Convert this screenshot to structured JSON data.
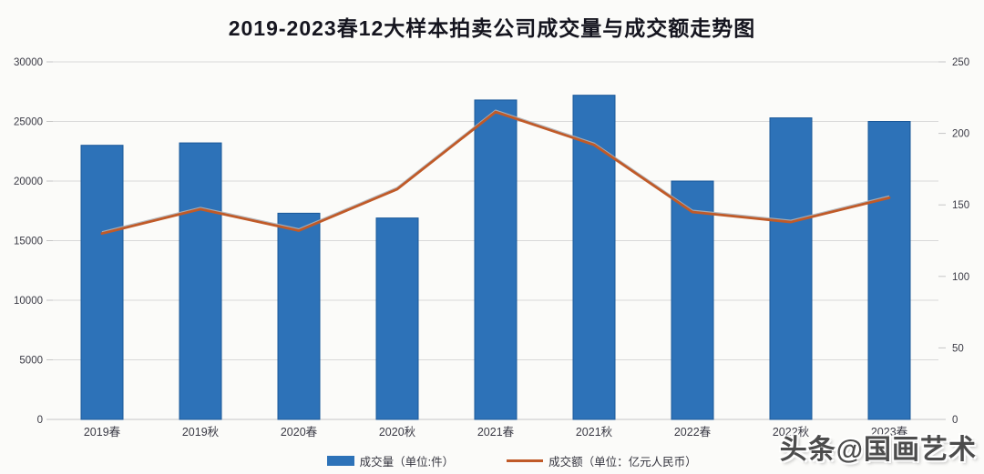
{
  "title": "2019-2023春12大样本拍卖公司成交量与成交额走势图",
  "watermark": "头条@国画艺术",
  "legend": [
    {
      "label": "成交量（单位:件）",
      "type": "bar",
      "color": "#2d72b8"
    },
    {
      "label": "成交额（单位：亿元人民币）",
      "type": "line",
      "color": "#c05a28"
    }
  ],
  "colors": {
    "bar_fill": "#2d72b8",
    "bar_stroke": "#1a5899",
    "line": "#c05a28",
    "line_highlight": "#aeb2b8",
    "gridline": "#d9d9d9",
    "baseline": "#c6c6c6",
    "axis_text": "#3a3a45",
    "background": "#fbfbf9"
  },
  "chart_data": {
    "type": "bar",
    "title": "2019-2023春12大样本拍卖公司成交量与成交额走势图",
    "categories": [
      "2019春",
      "2019秋",
      "2020春",
      "2020秋",
      "2021春",
      "2021秋",
      "2022春",
      "2022秋",
      "2023春"
    ],
    "series": [
      {
        "name": "成交量（单位:件）",
        "type": "bar",
        "axis": "left",
        "color": "#2d72b8",
        "values": [
          23000,
          23200,
          17300,
          16900,
          26800,
          27200,
          20000,
          25300,
          25000
        ]
      },
      {
        "name": "成交额（单位：亿元人民币）",
        "type": "line",
        "axis": "right",
        "color": "#c05a28",
        "values": [
          130,
          147,
          132,
          161,
          215,
          192,
          145,
          138,
          155
        ]
      }
    ],
    "left_axis": {
      "label": "",
      "min": 0,
      "max": 30000,
      "step": 5000,
      "ticks": [
        0,
        5000,
        10000,
        15000,
        20000,
        25000,
        30000
      ]
    },
    "right_axis": {
      "label": "",
      "min": 0,
      "max": 250,
      "step": 50,
      "ticks": [
        0,
        50,
        100,
        150,
        200,
        250
      ]
    },
    "grid": true,
    "legend_position": "bottom",
    "xlabel": "",
    "ylabel": ""
  }
}
